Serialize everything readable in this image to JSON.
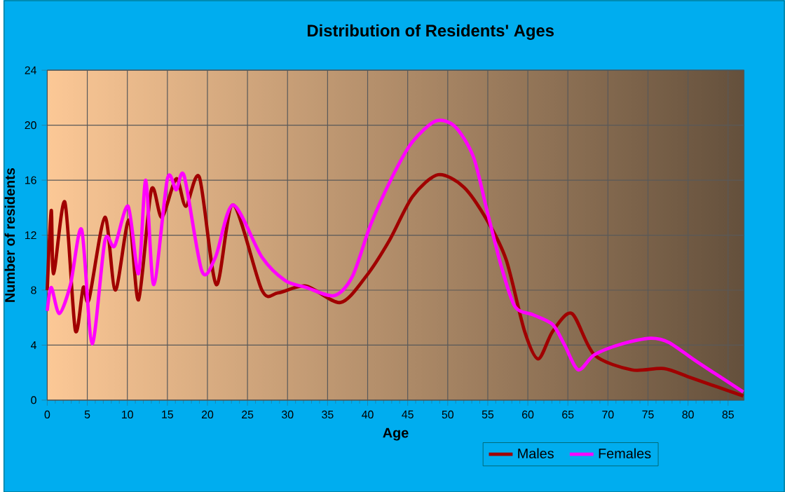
{
  "chart_data": {
    "type": "line",
    "title": "Distribution of Residents' Ages",
    "xlabel": "Age",
    "ylabel": "Number of residents",
    "xlim": [
      0,
      87
    ],
    "ylim": [
      0,
      24
    ],
    "xticks": [
      0,
      5,
      10,
      15,
      20,
      25,
      30,
      35,
      40,
      45,
      50,
      55,
      60,
      65,
      70,
      75,
      80,
      85
    ],
    "yticks": [
      0,
      4,
      8,
      12,
      16,
      20,
      24
    ],
    "grid": true,
    "legend": "bottom",
    "series": [
      {
        "name": "Males",
        "color": "#a00000",
        "x": [
          0,
          0.5,
          0.8,
          2.2,
          3.5,
          4.5,
          5.2,
          7.2,
          8.5,
          10.2,
          11.4,
          13,
          14.3,
          16.1,
          17.3,
          19,
          21.1,
          23.2,
          26.8,
          28.8,
          32.3,
          36.6,
          39.8,
          42.7,
          45.6,
          48.8,
          52,
          54.9,
          57.3,
          59.6,
          61.3,
          63.1,
          65.5,
          68.3,
          73,
          77,
          80.5,
          86.9
        ],
        "values": [
          8,
          13.8,
          9.2,
          14.4,
          5.1,
          8.2,
          7.3,
          13.3,
          8,
          13.1,
          7.3,
          15.3,
          13.3,
          16.1,
          14.1,
          16.2,
          8.4,
          14.2,
          8,
          7.8,
          8.3,
          7.1,
          9,
          11.6,
          14.8,
          16.4,
          15.5,
          13.1,
          10.2,
          5,
          3,
          5,
          6.3,
          3.3,
          2.2,
          2.3,
          1.6,
          0.3
        ]
      },
      {
        "name": "Females",
        "color": "#ff00ff",
        "x": [
          0,
          0.5,
          1.5,
          2.9,
          4.3,
          5.6,
          7.2,
          8.4,
          10.1,
          11.4,
          12.3,
          13.3,
          15,
          16.1,
          17.1,
          19.3,
          21,
          23.2,
          26.8,
          29.7,
          32.3,
          35.8,
          38.1,
          40.4,
          43.3,
          45.6,
          48.5,
          50.9,
          53.2,
          54.9,
          56.7,
          58.4,
          60.7,
          63.1,
          64.6,
          66.3,
          68.3,
          71.8,
          75.3,
          77.6,
          81.1,
          86.9
        ],
        "values": [
          6.5,
          8.2,
          6.3,
          8.4,
          12.4,
          4.1,
          11.6,
          11.2,
          14.1,
          9.2,
          16,
          8.4,
          16.1,
          15.3,
          16.3,
          9.4,
          10.4,
          14.2,
          10.4,
          8.7,
          8.2,
          7.6,
          9,
          12.8,
          16.5,
          18.8,
          20.3,
          19.9,
          17.7,
          13.8,
          9.7,
          6.8,
          6.2,
          5.5,
          4,
          2.2,
          3.3,
          4.1,
          4.5,
          4.2,
          2.8,
          0.6
        ]
      }
    ]
  }
}
